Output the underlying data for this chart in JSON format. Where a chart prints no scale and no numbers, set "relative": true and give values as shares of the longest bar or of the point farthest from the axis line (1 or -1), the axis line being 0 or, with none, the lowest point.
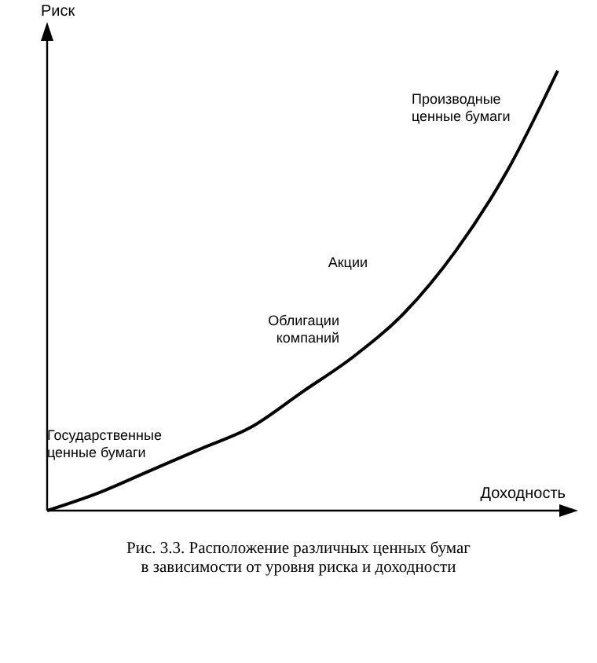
{
  "chart_data": {
    "type": "line",
    "relative": true,
    "color": "#000000",
    "marker": "none",
    "line_style": "solid",
    "title": "Рис. 3.3. Расположение различных ценных бумаг\nв зависимости от уровня риска и доходности",
    "xlabel": "Доходность",
    "ylabel": "Риск",
    "categories": [
      null,
      null,
      null,
      null,
      null,
      null,
      null,
      null,
      null,
      null,
      null
    ],
    "values": [
      0,
      0.04,
      0.09,
      0.14,
      0.19,
      0.27,
      0.35,
      0.45,
      0.59,
      0.77,
      1
    ],
    "annotations": [
      "Государственные\nценные бумаги",
      "Облигации\nкомпаний",
      "Акции",
      "Производные\nценные бумаги"
    ]
  }
}
